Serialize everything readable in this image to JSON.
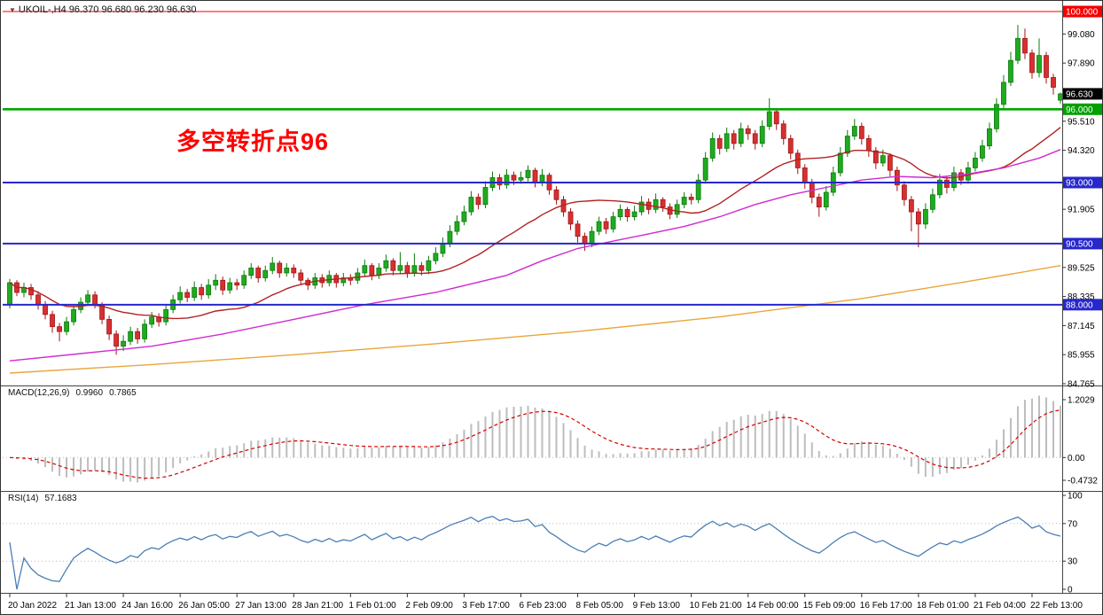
{
  "header": {
    "marker_icon": "▼",
    "symbol_line": "UKOIL-,H4 96.370 96.680 96.230 96.630",
    "symbol": "UKOIL-",
    "timeframe": "H4",
    "open": "96.370",
    "high": "96.680",
    "low": "96.230",
    "close": "96.630"
  },
  "annotation": {
    "text": "多空转折点96",
    "color": "#FF0000"
  },
  "indicators": {
    "macd": {
      "label": "MACD(12,26,9)",
      "main_value": "0.9960",
      "signal_value": "0.7865"
    },
    "rsi": {
      "label": "RSI(14)",
      "value": "57.1683"
    }
  },
  "chart_data": {
    "type": "candlestick",
    "title": "UKOIL- H4",
    "price_axis": {
      "top": 100.0,
      "bottom": 84.765,
      "labels": [
        {
          "text": "99.080",
          "value": 99.08
        },
        {
          "text": "97.890",
          "value": 97.89
        },
        {
          "text": "95.510",
          "value": 95.51
        },
        {
          "text": "94.320",
          "value": 94.32
        },
        {
          "text": "91.905",
          "value": 91.905
        },
        {
          "text": "89.525",
          "value": 89.525
        },
        {
          "text": "88.335",
          "value": 88.335
        },
        {
          "text": "87.145",
          "value": 87.145
        },
        {
          "text": "85.955",
          "value": 85.955
        },
        {
          "text": "84.765",
          "value": 84.765
        }
      ]
    },
    "badges": [
      {
        "text": "100.000",
        "price": 100.0,
        "bg": "#F40000",
        "fg": "#FFFFFF"
      },
      {
        "text": "96.630",
        "price": 96.63,
        "bg": "#000000",
        "fg": "#FFFFFF"
      },
      {
        "text": "96.000",
        "price": 96.0,
        "bg": "#00A000",
        "fg": "#FFFFFF"
      },
      {
        "text": "93.000",
        "price": 93.0,
        "bg": "#2727CC",
        "fg": "#FFFFFF"
      },
      {
        "text": "90.500",
        "price": 90.5,
        "bg": "#2727CC",
        "fg": "#FFFFFF"
      },
      {
        "text": "88.000",
        "price": 88.0,
        "bg": "#2727CC",
        "fg": "#FFFFFF"
      }
    ],
    "hlines": [
      {
        "price": 100.0,
        "color": "#F40000",
        "width": 1
      },
      {
        "price": 96.0,
        "color": "#00A600",
        "width": 2.6
      },
      {
        "price": 93.0,
        "color": "#2727CC",
        "width": 2
      },
      {
        "price": 90.5,
        "color": "#2727CC",
        "width": 2
      },
      {
        "price": 88.0,
        "color": "#2727CC",
        "width": 2
      }
    ],
    "time_labels": [
      "20 Jan 2022",
      "21 Jan 13:00",
      "24 Jan 16:00",
      "26 Jan 05:00",
      "27 Jan 13:00",
      "28 Jan 21:00",
      "1 Feb 01:00",
      "2 Feb 09:00",
      "3 Feb 17:00",
      "6 Feb 23:00",
      "8 Feb 05:00",
      "9 Feb 13:00",
      "10 Feb 21:00",
      "14 Feb 00:00",
      "15 Feb 09:00",
      "16 Feb 17:00",
      "18 Feb 01:00",
      "21 Feb 04:00",
      "22 Feb 13:00"
    ],
    "candle_up_fill": "#1FAB1F",
    "candle_up_stroke": "#0C7A0C",
    "candle_down_fill": "#D63031",
    "candle_down_stroke": "#A31515",
    "candles": [
      [
        88.0,
        89.05,
        87.85,
        88.9
      ],
      [
        88.9,
        89.0,
        88.35,
        88.5
      ],
      [
        88.5,
        88.9,
        88.3,
        88.7
      ],
      [
        88.7,
        88.85,
        88.2,
        88.4
      ],
      [
        88.4,
        88.55,
        87.8,
        88.0
      ],
      [
        88.0,
        88.15,
        87.4,
        87.6
      ],
      [
        87.6,
        87.75,
        86.85,
        87.1
      ],
      [
        87.1,
        87.25,
        86.5,
        86.9
      ],
      [
        86.9,
        87.5,
        86.75,
        87.3
      ],
      [
        87.3,
        87.95,
        87.15,
        87.8
      ],
      [
        87.8,
        88.3,
        87.65,
        88.1
      ],
      [
        88.1,
        88.6,
        87.95,
        88.4
      ],
      [
        88.4,
        88.55,
        87.85,
        88.0
      ],
      [
        88.0,
        88.1,
        87.2,
        87.4
      ],
      [
        87.4,
        87.55,
        86.55,
        86.8
      ],
      [
        86.8,
        86.95,
        85.95,
        86.3
      ],
      [
        86.3,
        86.75,
        86.1,
        86.5
      ],
      [
        86.5,
        87.1,
        86.35,
        86.9
      ],
      [
        86.9,
        87.05,
        86.4,
        86.6
      ],
      [
        86.6,
        87.4,
        86.45,
        87.2
      ],
      [
        87.2,
        87.7,
        87.05,
        87.5
      ],
      [
        87.5,
        87.65,
        87.1,
        87.3
      ],
      [
        87.3,
        88.0,
        87.15,
        87.8
      ],
      [
        87.8,
        88.4,
        87.65,
        88.2
      ],
      [
        88.2,
        88.75,
        88.05,
        88.5
      ],
      [
        88.5,
        88.65,
        88.1,
        88.3
      ],
      [
        88.3,
        88.95,
        88.15,
        88.7
      ],
      [
        88.7,
        88.85,
        88.2,
        88.4
      ],
      [
        88.4,
        89.05,
        88.25,
        88.8
      ],
      [
        88.8,
        89.25,
        88.6,
        89.0
      ],
      [
        89.0,
        89.15,
        88.4,
        88.6
      ],
      [
        88.6,
        89.1,
        88.45,
        88.9
      ],
      [
        88.9,
        89.05,
        88.6,
        88.8
      ],
      [
        88.8,
        89.4,
        88.65,
        89.2
      ],
      [
        89.2,
        89.7,
        89.05,
        89.5
      ],
      [
        89.5,
        89.6,
        88.9,
        89.1
      ],
      [
        89.1,
        89.6,
        88.95,
        89.4
      ],
      [
        89.4,
        89.95,
        89.25,
        89.7
      ],
      [
        89.7,
        89.8,
        89.1,
        89.3
      ],
      [
        89.3,
        89.7,
        89.15,
        89.5
      ],
      [
        89.5,
        89.65,
        89.1,
        89.3
      ],
      [
        89.3,
        89.45,
        88.8,
        89.0
      ],
      [
        89.0,
        89.1,
        88.6,
        88.8
      ],
      [
        88.8,
        89.3,
        88.65,
        89.1
      ],
      [
        89.1,
        89.25,
        88.7,
        88.9
      ],
      [
        88.9,
        89.4,
        88.75,
        89.2
      ],
      [
        89.2,
        89.3,
        88.7,
        88.9
      ],
      [
        88.9,
        89.3,
        88.75,
        89.1
      ],
      [
        89.1,
        89.25,
        88.8,
        89.0
      ],
      [
        89.0,
        89.5,
        88.85,
        89.3
      ],
      [
        89.3,
        89.85,
        89.15,
        89.6
      ],
      [
        89.6,
        89.7,
        89.0,
        89.2
      ],
      [
        89.2,
        89.7,
        89.05,
        89.5
      ],
      [
        89.5,
        90.05,
        89.35,
        89.8
      ],
      [
        89.8,
        89.9,
        89.2,
        89.4
      ],
      [
        89.4,
        90.15,
        89.25,
        89.6
      ],
      [
        89.6,
        89.75,
        89.1,
        89.3
      ],
      [
        89.3,
        90.1,
        89.15,
        89.6
      ],
      [
        89.6,
        89.75,
        89.2,
        89.4
      ],
      [
        89.4,
        90.0,
        89.25,
        89.8
      ],
      [
        89.8,
        90.35,
        89.65,
        90.1
      ],
      [
        90.1,
        90.75,
        89.95,
        90.5
      ],
      [
        90.5,
        91.25,
        90.35,
        91.0
      ],
      [
        91.0,
        91.65,
        90.85,
        91.4
      ],
      [
        91.4,
        92.05,
        91.25,
        91.8
      ],
      [
        91.8,
        92.65,
        91.65,
        92.4
      ],
      [
        92.4,
        92.55,
        91.9,
        92.1
      ],
      [
        92.1,
        93.05,
        91.95,
        92.8
      ],
      [
        92.8,
        93.45,
        92.65,
        93.2
      ],
      [
        93.2,
        93.35,
        92.7,
        92.9
      ],
      [
        92.9,
        93.55,
        92.75,
        93.3
      ],
      [
        93.3,
        93.45,
        92.9,
        93.1
      ],
      [
        93.1,
        93.45,
        92.95,
        93.2
      ],
      [
        93.2,
        93.7,
        93.05,
        93.5
      ],
      [
        93.5,
        93.6,
        92.8,
        93.0
      ],
      [
        93.0,
        93.55,
        92.85,
        93.3
      ],
      [
        93.3,
        93.4,
        92.5,
        92.7
      ],
      [
        92.7,
        92.85,
        92.1,
        92.3
      ],
      [
        92.3,
        92.45,
        91.6,
        91.8
      ],
      [
        91.8,
        91.95,
        91.05,
        91.3
      ],
      [
        91.3,
        91.45,
        90.55,
        90.8
      ],
      [
        90.8,
        90.95,
        90.2,
        90.5
      ],
      [
        90.5,
        91.2,
        90.35,
        91.0
      ],
      [
        91.0,
        91.6,
        90.85,
        91.4
      ],
      [
        91.4,
        91.55,
        90.9,
        91.1
      ],
      [
        91.1,
        91.8,
        90.95,
        91.6
      ],
      [
        91.6,
        92.1,
        91.45,
        91.9
      ],
      [
        91.9,
        92.0,
        91.4,
        91.6
      ],
      [
        91.6,
        92.05,
        91.45,
        91.8
      ],
      [
        91.8,
        92.45,
        91.65,
        92.2
      ],
      [
        92.2,
        92.35,
        91.7,
        91.9
      ],
      [
        91.9,
        92.55,
        91.75,
        92.3
      ],
      [
        92.3,
        92.4,
        91.8,
        92.0
      ],
      [
        92.0,
        92.15,
        91.5,
        91.7
      ],
      [
        91.7,
        92.3,
        91.55,
        92.1
      ],
      [
        92.1,
        92.6,
        91.95,
        92.4
      ],
      [
        92.4,
        92.55,
        92.1,
        92.3
      ],
      [
        92.3,
        93.35,
        92.15,
        93.1
      ],
      [
        93.1,
        94.25,
        92.95,
        94.0
      ],
      [
        94.0,
        95.05,
        93.85,
        94.8
      ],
      [
        94.8,
        94.95,
        94.15,
        94.4
      ],
      [
        94.4,
        95.25,
        94.25,
        95.0
      ],
      [
        95.0,
        95.15,
        94.35,
        94.6
      ],
      [
        94.6,
        95.45,
        94.45,
        95.2
      ],
      [
        95.2,
        95.35,
        94.75,
        95.0
      ],
      [
        95.0,
        95.15,
        94.35,
        94.6
      ],
      [
        94.6,
        95.55,
        94.45,
        95.3
      ],
      [
        95.3,
        96.45,
        95.15,
        95.9
      ],
      [
        95.9,
        96.05,
        95.15,
        95.4
      ],
      [
        95.4,
        95.55,
        94.55,
        94.8
      ],
      [
        94.8,
        94.95,
        93.95,
        94.2
      ],
      [
        94.2,
        94.35,
        93.35,
        93.6
      ],
      [
        93.6,
        93.75,
        92.75,
        93.0
      ],
      [
        93.0,
        93.15,
        92.15,
        92.4
      ],
      [
        92.4,
        92.55,
        91.6,
        92.0
      ],
      [
        92.0,
        92.85,
        91.85,
        92.6
      ],
      [
        92.6,
        93.65,
        92.45,
        93.4
      ],
      [
        93.4,
        94.45,
        93.25,
        94.2
      ],
      [
        94.2,
        95.15,
        94.05,
        94.9
      ],
      [
        94.9,
        95.6,
        94.75,
        95.3
      ],
      [
        95.3,
        95.45,
        94.55,
        94.8
      ],
      [
        94.8,
        94.95,
        94.05,
        94.3
      ],
      [
        94.3,
        94.45,
        93.55,
        93.8
      ],
      [
        93.8,
        94.35,
        93.65,
        94.1
      ],
      [
        94.1,
        94.2,
        93.25,
        93.5
      ],
      [
        93.5,
        93.65,
        92.65,
        92.9
      ],
      [
        92.9,
        93.05,
        92.05,
        92.3
      ],
      [
        92.3,
        92.45,
        91.0,
        91.8
      ],
      [
        91.8,
        91.95,
        90.35,
        91.3
      ],
      [
        91.3,
        92.15,
        91.1,
        91.9
      ],
      [
        91.9,
        92.75,
        91.75,
        92.5
      ],
      [
        92.5,
        93.35,
        92.35,
        93.1
      ],
      [
        93.1,
        93.25,
        92.55,
        92.8
      ],
      [
        92.8,
        93.65,
        92.65,
        93.4
      ],
      [
        93.4,
        93.55,
        92.9,
        93.1
      ],
      [
        93.1,
        93.85,
        92.95,
        93.6
      ],
      [
        93.6,
        94.25,
        93.45,
        94.0
      ],
      [
        94.0,
        94.75,
        93.85,
        94.5
      ],
      [
        94.5,
        95.45,
        94.35,
        95.2
      ],
      [
        95.2,
        96.45,
        95.05,
        96.2
      ],
      [
        96.2,
        97.4,
        96.05,
        97.1
      ],
      [
        97.1,
        98.35,
        96.95,
        98.0
      ],
      [
        98.0,
        99.45,
        97.85,
        98.9
      ],
      [
        98.9,
        99.3,
        98.05,
        98.3
      ],
      [
        98.3,
        98.45,
        97.25,
        97.5
      ],
      [
        97.5,
        98.9,
        97.3,
        98.2
      ],
      [
        98.2,
        98.35,
        97.05,
        97.3
      ],
      [
        97.3,
        97.45,
        96.6,
        96.9
      ],
      [
        96.37,
        96.68,
        96.23,
        96.63
      ]
    ],
    "overlays": {
      "ma_fast": {
        "type": "sma",
        "period": 21,
        "color": "#B22222"
      },
      "ma_mid": {
        "color": "#D02BD0",
        "points": [
          [
            0,
            85.7
          ],
          [
            10,
            86.0
          ],
          [
            20,
            86.3
          ],
          [
            30,
            86.8
          ],
          [
            40,
            87.4
          ],
          [
            50,
            88.0
          ],
          [
            60,
            88.5
          ],
          [
            70,
            89.2
          ],
          [
            75,
            89.8
          ],
          [
            80,
            90.3
          ],
          [
            85,
            90.6
          ],
          [
            90,
            90.9
          ],
          [
            95,
            91.2
          ],
          [
            100,
            91.6
          ],
          [
            105,
            92.1
          ],
          [
            110,
            92.5
          ],
          [
            115,
            92.8
          ],
          [
            120,
            93.1
          ],
          [
            125,
            93.25
          ],
          [
            130,
            93.2
          ],
          [
            135,
            93.35
          ],
          [
            140,
            93.6
          ],
          [
            145,
            94.0
          ],
          [
            148,
            94.35
          ]
        ]
      },
      "ma_slow": {
        "color": "#E8A63C",
        "points": [
          [
            0,
            85.2
          ],
          [
            20,
            85.55
          ],
          [
            40,
            85.95
          ],
          [
            60,
            86.4
          ],
          [
            80,
            86.9
          ],
          [
            100,
            87.5
          ],
          [
            120,
            88.25
          ],
          [
            135,
            88.95
          ],
          [
            148,
            89.6
          ]
        ]
      }
    },
    "macd_panel": {
      "params": [
        12,
        26,
        9
      ],
      "range": {
        "max": 1.2029,
        "min": -0.4732
      },
      "axis": [
        {
          "text": "1.2029",
          "value": 1.2029
        },
        {
          "text": "0.00",
          "value": 0
        },
        {
          "text": "-0.4732",
          "value": -0.4732
        }
      ],
      "histogram_color": "#BDBDBD",
      "signal_color": "#D40000"
    },
    "rsi_panel": {
      "period": 14,
      "axis": [
        {
          "text": "100",
          "value": 100
        },
        {
          "text": "70",
          "value": 70
        },
        {
          "text": "30",
          "value": 30
        },
        {
          "text": "0",
          "value": 0
        }
      ],
      "levels": [
        70,
        30
      ],
      "line_color": "#4A7FB5"
    }
  }
}
